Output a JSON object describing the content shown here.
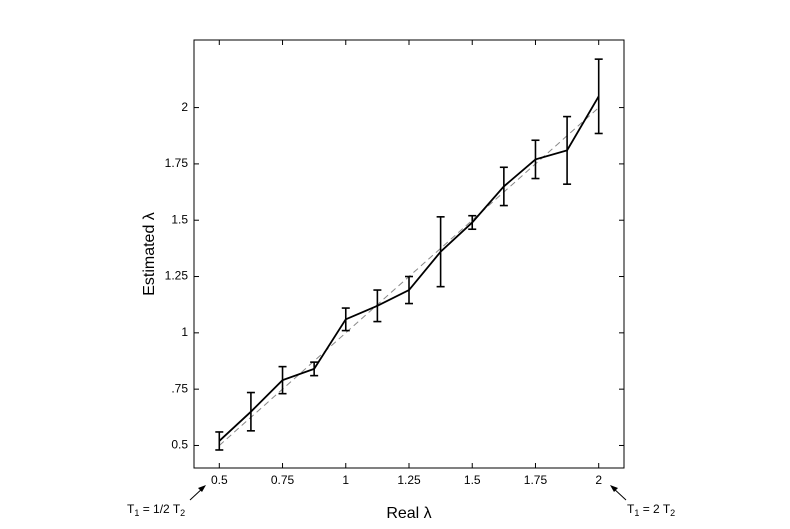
{
  "chart_data": {
    "type": "line",
    "x_label": "Real λ",
    "y_label": "Estimated  λ",
    "x": [
      0.5,
      0.625,
      0.75,
      0.875,
      1,
      1.125,
      1.25,
      1.375,
      1.5,
      1.625,
      1.75,
      1.875,
      2
    ],
    "series": [
      {
        "color": "#000000",
        "values": [
          0.52,
          0.65,
          0.79,
          0.84,
          1.06,
          1.12,
          1.19,
          1.36,
          1.49,
          1.65,
          1.77,
          1.81,
          2.05
        ],
        "errors": [
          0.04,
          0.085,
          0.06,
          0.03,
          0.05,
          0.07,
          0.06,
          0.155,
          0.03,
          0.085,
          0.085,
          0.15,
          0.165
        ]
      }
    ],
    "xlim": [
      0.4,
      2.1
    ],
    "ylim": [
      0.4,
      2.3
    ],
    "xticks": [
      0.5,
      0.75,
      1,
      1.25,
      1.5,
      1.75,
      2
    ],
    "yticks": [
      0.5,
      {
        "value": 0.75,
        "label": ".75"
      },
      1,
      1.25,
      1.5,
      1.75,
      2
    ],
    "annotations": [
      [
        "T",
        "1",
        " = 1/2 T",
        "2"
      ],
      [
        "T",
        "1",
        " = 2 T",
        "2"
      ]
    ]
  }
}
